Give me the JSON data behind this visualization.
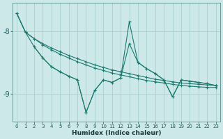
{
  "xlabel": "Humidex (Indice chaleur)",
  "bg_color": "#cce8e8",
  "grid_color": "#aacfcf",
  "line_color": "#1a7a6e",
  "x_min": -0.5,
  "x_max": 23.5,
  "y_min": -9.45,
  "y_max": -7.55,
  "yticks": [
    -9,
    -8
  ],
  "line1_x": [
    0,
    1,
    2,
    3,
    4,
    5,
    6,
    7,
    8,
    9,
    10,
    11,
    12,
    13,
    14,
    15,
    16,
    17,
    18,
    19,
    20,
    21,
    22,
    23
  ],
  "line1_y": [
    -7.72,
    -8.02,
    -8.12,
    -8.2,
    -8.27,
    -8.33,
    -8.39,
    -8.44,
    -8.49,
    -8.54,
    -8.58,
    -8.62,
    -8.65,
    -8.68,
    -8.71,
    -8.74,
    -8.77,
    -8.79,
    -8.81,
    -8.83,
    -8.84,
    -8.85,
    -8.86,
    -8.87
  ],
  "line2_x": [
    0,
    1,
    2,
    3,
    4,
    5,
    6,
    7,
    8,
    9,
    10,
    11,
    12,
    13,
    14,
    15,
    16,
    17,
    18,
    19,
    20,
    21,
    22,
    23
  ],
  "line2_y": [
    -7.72,
    -8.02,
    -8.12,
    -8.22,
    -8.3,
    -8.37,
    -8.43,
    -8.49,
    -8.54,
    -8.59,
    -8.63,
    -8.67,
    -8.7,
    -8.73,
    -8.76,
    -8.79,
    -8.81,
    -8.83,
    -8.85,
    -8.87,
    -8.88,
    -8.89,
    -8.9,
    -8.9
  ],
  "line3_x": [
    0,
    1,
    2,
    3,
    4,
    5,
    6,
    7,
    8,
    9,
    10,
    11,
    12,
    13,
    14,
    15,
    16,
    17,
    18,
    19,
    20,
    21,
    22,
    23
  ],
  "line3_y": [
    -7.72,
    -8.02,
    -8.25,
    -8.43,
    -8.57,
    -8.65,
    -8.72,
    -8.78,
    -9.3,
    -8.95,
    -8.78,
    -8.82,
    -8.75,
    -8.2,
    -8.5,
    -8.6,
    -8.68,
    -8.78,
    -9.05,
    -8.78,
    -8.8,
    -8.82,
    -8.84,
    -8.87
  ],
  "line4_x": [
    2,
    3,
    4,
    5,
    6,
    7,
    8,
    9,
    10,
    11,
    12,
    13,
    14,
    15,
    16,
    17,
    18,
    19,
    20,
    21,
    22,
    23
  ],
  "line4_y": [
    -8.25,
    -8.43,
    -8.57,
    -8.65,
    -8.72,
    -8.78,
    -9.3,
    -8.95,
    -8.78,
    -8.82,
    -8.75,
    -7.85,
    -8.5,
    -8.6,
    -8.68,
    -8.78,
    -9.05,
    -8.78,
    -8.8,
    -8.82,
    -8.84,
    -8.87
  ]
}
